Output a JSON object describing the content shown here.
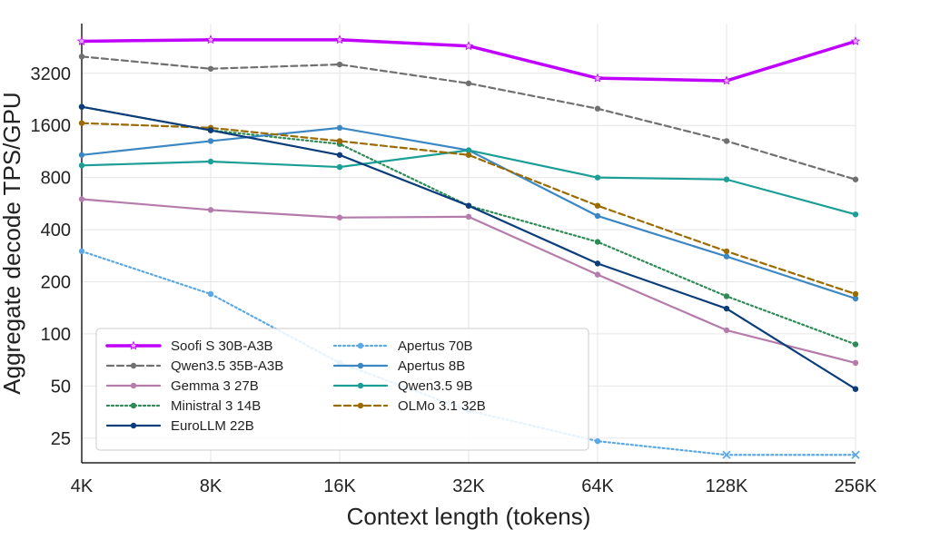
{
  "chart_data": {
    "type": "line",
    "xlabel": "Context length (tokens)",
    "ylabel": "Aggregate decode TPS/GPU",
    "y_scale": "log2",
    "ylim": [
      18,
      6200
    ],
    "grid": true,
    "legend_position": "bottom-left",
    "categories": [
      "4K",
      "8K",
      "16K",
      "32K",
      "64K",
      "128K",
      "256K"
    ],
    "y_ticks": [
      25,
      50,
      100,
      200,
      400,
      800,
      1600,
      3200
    ],
    "y_tick_labels": [
      "25",
      "50",
      "100",
      "200",
      "400",
      "800",
      "1600",
      "3200"
    ],
    "series": [
      {
        "name": "Soofi S 30B-A3B",
        "color": "#bf00ff",
        "dash": "solid",
        "marker": "star",
        "width": 3.5,
        "values": [
          4900,
          5000,
          5000,
          4600,
          3000,
          2900,
          4900
        ]
      },
      {
        "name": "Qwen3.5 35B-A3B",
        "color": "#707070",
        "dash": "dashed",
        "marker": "circle",
        "width": 2.2,
        "values": [
          4000,
          3400,
          3600,
          2800,
          2000,
          1300,
          780
        ]
      },
      {
        "name": "Gemma 3 27B",
        "color": "#b57bab",
        "dash": "solid",
        "marker": "circle",
        "width": 2.2,
        "values": [
          600,
          520,
          470,
          475,
          220,
          105,
          68
        ]
      },
      {
        "name": "Ministral 3 14B",
        "color": "#2e8b57",
        "dash": "dotted",
        "marker": "circle",
        "width": 2.2,
        "values": [
          2050,
          1500,
          1250,
          550,
          340,
          165,
          87
        ]
      },
      {
        "name": "EuroLLM 22B",
        "color": "#0b3d7a",
        "dash": "solid",
        "marker": "circle",
        "width": 2.2,
        "values": [
          2050,
          1500,
          1080,
          550,
          255,
          140,
          48
        ]
      },
      {
        "name": "Apertus 70B",
        "color": "#5aa9e6",
        "dash": "dotted",
        "marker": "circle",
        "marker_last": "x",
        "width": 2.2,
        "values": [
          300,
          170,
          68,
          36,
          24,
          20,
          20
        ]
      },
      {
        "name": "Apertus 8B",
        "color": "#3a87c4",
        "dash": "solid",
        "marker": "circle",
        "width": 2.2,
        "values": [
          1080,
          1300,
          1550,
          1150,
          480,
          280,
          160
        ]
      },
      {
        "name": "Qwen3.5 9B",
        "color": "#1a9e96",
        "dash": "solid",
        "marker": "circle",
        "width": 2.2,
        "values": [
          940,
          990,
          920,
          1150,
          800,
          780,
          490
        ]
      },
      {
        "name": "OLMo 3.1 32B",
        "color": "#9c6b00",
        "dash": "dashed",
        "marker": "circle",
        "width": 2.2,
        "values": [
          1650,
          1550,
          1300,
          1080,
          550,
          300,
          170
        ]
      }
    ]
  }
}
